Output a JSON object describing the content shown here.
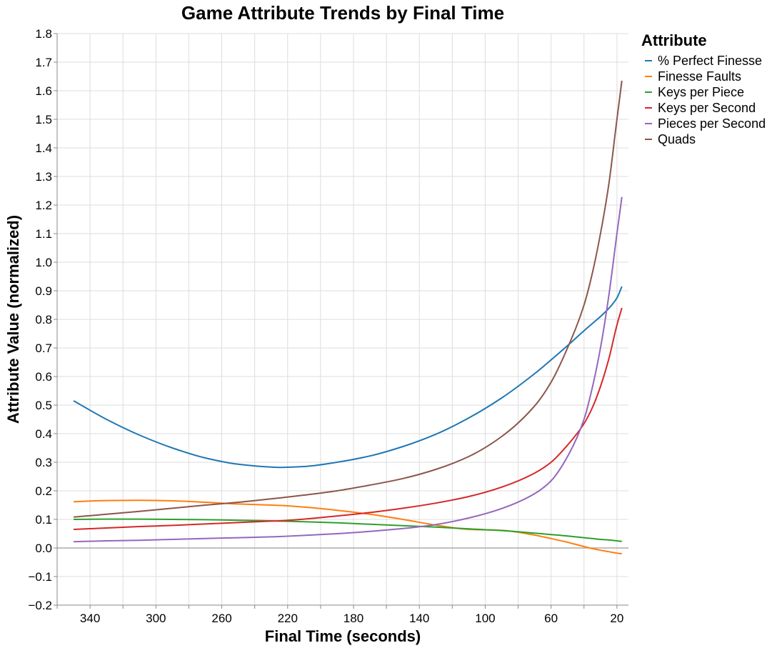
{
  "chart_data": {
    "type": "line",
    "title": "Game Attribute Trends by Final Time",
    "xlabel": "Final Time (seconds)",
    "ylabel": "Attribute Value (normalized)",
    "x_reversed": true,
    "xlim": [
      360,
      13
    ],
    "ylim": [
      -0.2,
      1.8
    ],
    "xticks": [
      340,
      300,
      260,
      220,
      180,
      140,
      100,
      60,
      20
    ],
    "yticks": [
      -0.2,
      -0.1,
      0.0,
      0.1,
      0.2,
      0.3,
      0.4,
      0.5,
      0.6,
      0.7,
      0.8,
      0.9,
      1.0,
      1.1,
      1.2,
      1.3,
      1.4,
      1.5,
      1.6,
      1.7,
      1.8
    ],
    "ytick_labels": [
      "−0.2",
      "−0.1",
      "0.0",
      "0.1",
      "0.2",
      "0.3",
      "0.4",
      "0.5",
      "0.6",
      "0.7",
      "0.8",
      "0.9",
      "1.0",
      "1.1",
      "1.2",
      "1.3",
      "1.4",
      "1.5",
      "1.6",
      "1.7",
      "1.8"
    ],
    "grid": true,
    "legend_title": "Attribute",
    "legend_position": "right",
    "x": [
      350,
      330,
      310,
      290,
      270,
      250,
      230,
      225,
      210,
      190,
      170,
      150,
      130,
      110,
      90,
      70,
      60,
      50,
      40,
      35,
      30,
      25,
      20,
      17
    ],
    "series": [
      {
        "name": "% Perfect Finesse",
        "color": "#1f77b4",
        "values": [
          0.515,
          0.45,
          0.395,
          0.35,
          0.315,
          0.293,
          0.283,
          0.282,
          0.285,
          0.3,
          0.322,
          0.355,
          0.398,
          0.455,
          0.525,
          0.61,
          0.658,
          0.708,
          0.76,
          0.785,
          0.81,
          0.838,
          0.875,
          0.915
        ]
      },
      {
        "name": "Finesse Faults",
        "color": "#ff7f0e",
        "values": [
          0.162,
          0.166,
          0.167,
          0.165,
          0.16,
          0.154,
          0.15,
          0.149,
          0.143,
          0.132,
          0.118,
          0.1,
          0.08,
          0.065,
          0.062,
          0.045,
          0.033,
          0.02,
          0.005,
          -0.002,
          -0.008,
          -0.013,
          -0.018,
          -0.02
        ]
      },
      {
        "name": "Keys per Piece",
        "color": "#2ca02c",
        "values": [
          0.1,
          0.101,
          0.101,
          0.1,
          0.099,
          0.097,
          0.095,
          0.094,
          0.092,
          0.088,
          0.083,
          0.078,
          0.073,
          0.067,
          0.061,
          0.052,
          0.047,
          0.042,
          0.036,
          0.033,
          0.03,
          0.028,
          0.025,
          0.023
        ]
      },
      {
        "name": "Keys per Second",
        "color": "#d62728",
        "values": [
          0.065,
          0.07,
          0.075,
          0.079,
          0.084,
          0.089,
          0.094,
          0.095,
          0.101,
          0.112,
          0.124,
          0.139,
          0.157,
          0.18,
          0.213,
          0.262,
          0.3,
          0.36,
          0.435,
          0.49,
          0.565,
          0.66,
          0.78,
          0.84
        ]
      },
      {
        "name": "Pieces per Second",
        "color": "#9467bd",
        "values": [
          0.022,
          0.025,
          0.027,
          0.03,
          0.033,
          0.036,
          0.039,
          0.04,
          0.044,
          0.05,
          0.058,
          0.068,
          0.082,
          0.105,
          0.138,
          0.19,
          0.235,
          0.32,
          0.45,
          0.56,
          0.7,
          0.88,
          1.1,
          1.228
        ]
      },
      {
        "name": "Quads",
        "color": "#8c564b",
        "values": [
          0.108,
          0.118,
          0.128,
          0.139,
          0.15,
          0.16,
          0.172,
          0.175,
          0.185,
          0.2,
          0.22,
          0.243,
          0.275,
          0.32,
          0.39,
          0.497,
          0.58,
          0.7,
          0.85,
          0.96,
          1.1,
          1.27,
          1.5,
          1.635
        ]
      }
    ]
  }
}
